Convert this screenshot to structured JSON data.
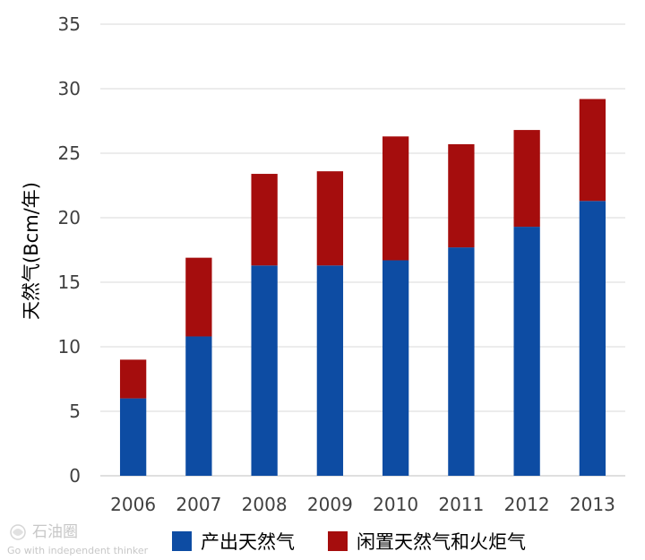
{
  "chart_data": {
    "type": "bar",
    "stacked": true,
    "categories": [
      "2006",
      "2007",
      "2008",
      "2009",
      "2010",
      "2011",
      "2012",
      "2013"
    ],
    "series": [
      {
        "name": "产出天然气",
        "color": "#0d4ca3",
        "values": [
          6.0,
          10.8,
          16.3,
          16.3,
          16.7,
          17.7,
          19.3,
          21.3
        ]
      },
      {
        "name": "闲置天然气和火炬气",
        "color": "#a50d0d",
        "values": [
          3.0,
          6.1,
          7.1,
          7.3,
          9.6,
          8.0,
          7.5,
          7.9
        ]
      }
    ],
    "ylabel": "天然气(Bcm/年)",
    "xlabel": "",
    "ylim": [
      0,
      35
    ],
    "yticks": [
      0,
      5,
      10,
      15,
      20,
      25,
      30,
      35
    ],
    "grid": true,
    "legend_position": "bottom"
  },
  "watermark": {
    "brand": "石油圈",
    "tagline": "Go with independent thinker"
  }
}
